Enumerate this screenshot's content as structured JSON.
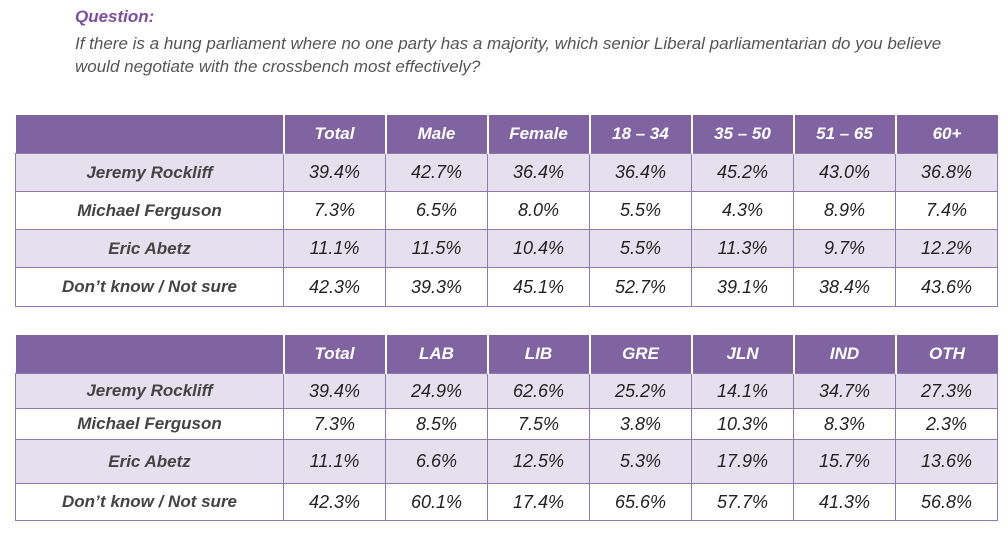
{
  "question": {
    "label": "Question:",
    "text": "If there is a hung parliament where no one party has a majority, which senior Liberal parliamentarian do you believe would negotiate with the crossbench most effectively?"
  },
  "table1": {
    "headers": [
      "",
      "Total",
      "Male",
      "Female",
      "18 – 34",
      "35 – 50",
      "51 – 65",
      "60+"
    ],
    "rows": [
      {
        "label": "Jeremy Rockliff",
        "values": [
          "39.4%",
          "42.7%",
          "36.4%",
          "36.4%",
          "45.2%",
          "43.0%",
          "36.8%"
        ]
      },
      {
        "label": "Michael Ferguson",
        "values": [
          "7.3%",
          "6.5%",
          "8.0%",
          "5.5%",
          "4.3%",
          "8.9%",
          "7.4%"
        ]
      },
      {
        "label": "Eric Abetz",
        "values": [
          "11.1%",
          "11.5%",
          "10.4%",
          "5.5%",
          "11.3%",
          "9.7%",
          "12.2%"
        ]
      },
      {
        "label": "Don’t know / Not sure",
        "values": [
          "42.3%",
          "39.3%",
          "45.1%",
          "52.7%",
          "39.1%",
          "38.4%",
          "43.6%"
        ]
      }
    ]
  },
  "table2": {
    "headers": [
      "",
      "Total",
      "LAB",
      "LIB",
      "GRE",
      "JLN",
      "IND",
      "OTH"
    ],
    "rows": [
      {
        "label": "Jeremy Rockliff",
        "values": [
          "39.4%",
          "24.9%",
          "62.6%",
          "25.2%",
          "14.1%",
          "34.7%",
          "27.3%"
        ]
      },
      {
        "label": "Michael Ferguson",
        "values": [
          "7.3%",
          "8.5%",
          "7.5%",
          "3.8%",
          "10.3%",
          "8.3%",
          "2.3%"
        ]
      },
      {
        "label": "Eric Abetz",
        "values": [
          "11.1%",
          "6.6%",
          "12.5%",
          "5.3%",
          "17.9%",
          "15.7%",
          "13.6%"
        ]
      },
      {
        "label": "Don’t know / Not sure",
        "values": [
          "42.3%",
          "60.1%",
          "17.4%",
          "65.6%",
          "57.7%",
          "41.3%",
          "56.8%"
        ]
      }
    ]
  },
  "colors": {
    "header_bg": "#8064a2",
    "stripe_bg": "#e6e0ee",
    "question_label": "#7b4fa0"
  }
}
